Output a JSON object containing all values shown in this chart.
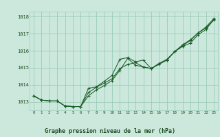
{
  "title": "Graphe pression niveau de la mer (hPa)",
  "bg_color": "#cce8dc",
  "grid_color": "#99ccb8",
  "line_color": "#1a5c2a",
  "marker_color": "#1a5c2a",
  "xlim": [
    -0.5,
    23.5
  ],
  "ylim": [
    1012.5,
    1018.3
  ],
  "yticks": [
    1013,
    1014,
    1015,
    1016,
    1017,
    1018
  ],
  "xticks": [
    0,
    1,
    2,
    3,
    4,
    5,
    6,
    7,
    8,
    9,
    10,
    11,
    12,
    13,
    14,
    15,
    16,
    17,
    18,
    19,
    20,
    21,
    22,
    23
  ],
  "series": [
    [
      1013.35,
      1013.1,
      1013.05,
      1013.05,
      1012.75,
      1012.72,
      1012.72,
      1013.35,
      1013.7,
      1013.95,
      1014.25,
      1014.85,
      1015.55,
      1015.15,
      1015.05,
      1014.95,
      1015.25,
      1015.45,
      1015.95,
      1016.25,
      1016.45,
      1016.95,
      1017.25,
      1017.85
    ],
    [
      1013.35,
      1013.1,
      1013.05,
      1013.05,
      1012.75,
      1012.72,
      1012.72,
      1013.55,
      1013.85,
      1014.1,
      1014.35,
      1014.95,
      1015.2,
      1015.3,
      1015.05,
      1014.95,
      1015.25,
      1015.5,
      1015.95,
      1016.35,
      1016.65,
      1017.05,
      1017.35,
      1017.8
    ],
    [
      1013.35,
      1013.1,
      1013.05,
      1013.05,
      1012.75,
      1012.72,
      1012.72,
      1013.8,
      1013.88,
      1014.2,
      1014.55,
      1015.5,
      1015.6,
      1015.35,
      1015.45,
      1014.95,
      1015.2,
      1015.45,
      1015.95,
      1016.3,
      1016.6,
      1017.05,
      1017.4,
      1017.9
    ]
  ]
}
